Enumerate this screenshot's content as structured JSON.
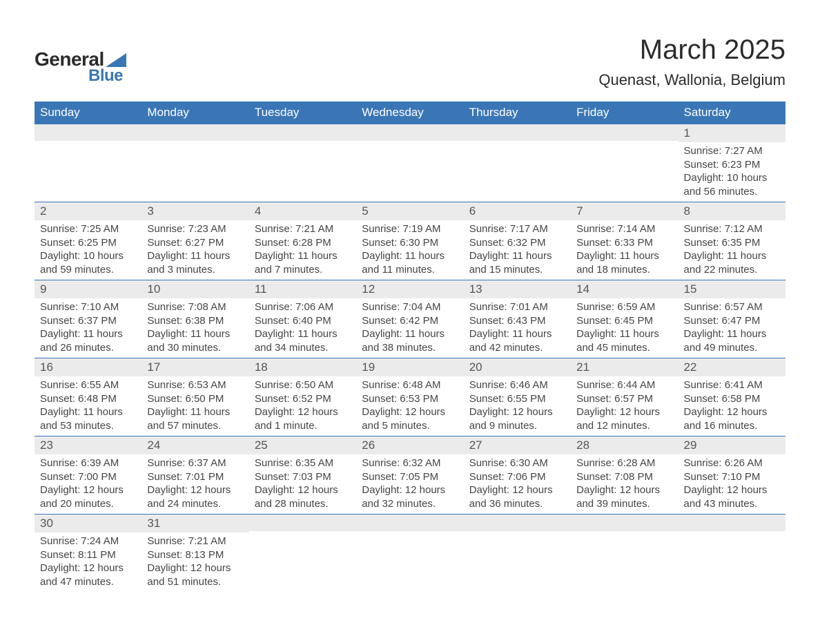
{
  "logo": {
    "text_general": "General",
    "text_blue": "Blue",
    "accent_color": "#3a76b5"
  },
  "title": {
    "month": "March 2025",
    "location": "Quenast, Wallonia, Belgium",
    "title_fontsize": 40,
    "location_fontsize": 22
  },
  "colors": {
    "header_bg": "#3a76b5",
    "header_text": "#ffffff",
    "daynum_bg": "#ebebeb",
    "daynum_text": "#555555",
    "body_text": "#454545",
    "row_border": "#3a76b5",
    "page_bg": "#ffffff"
  },
  "days_of_week": [
    "Sunday",
    "Monday",
    "Tuesday",
    "Wednesday",
    "Thursday",
    "Friday",
    "Saturday"
  ],
  "weeks": [
    [
      {
        "empty": true
      },
      {
        "empty": true
      },
      {
        "empty": true
      },
      {
        "empty": true
      },
      {
        "empty": true
      },
      {
        "empty": true
      },
      {
        "daynum": "1",
        "sunrise": "Sunrise: 7:27 AM",
        "sunset": "Sunset: 6:23 PM",
        "daylight": "Daylight: 10 hours and 56 minutes."
      }
    ],
    [
      {
        "daynum": "2",
        "sunrise": "Sunrise: 7:25 AM",
        "sunset": "Sunset: 6:25 PM",
        "daylight": "Daylight: 10 hours and 59 minutes."
      },
      {
        "daynum": "3",
        "sunrise": "Sunrise: 7:23 AM",
        "sunset": "Sunset: 6:27 PM",
        "daylight": "Daylight: 11 hours and 3 minutes."
      },
      {
        "daynum": "4",
        "sunrise": "Sunrise: 7:21 AM",
        "sunset": "Sunset: 6:28 PM",
        "daylight": "Daylight: 11 hours and 7 minutes."
      },
      {
        "daynum": "5",
        "sunrise": "Sunrise: 7:19 AM",
        "sunset": "Sunset: 6:30 PM",
        "daylight": "Daylight: 11 hours and 11 minutes."
      },
      {
        "daynum": "6",
        "sunrise": "Sunrise: 7:17 AM",
        "sunset": "Sunset: 6:32 PM",
        "daylight": "Daylight: 11 hours and 15 minutes."
      },
      {
        "daynum": "7",
        "sunrise": "Sunrise: 7:14 AM",
        "sunset": "Sunset: 6:33 PM",
        "daylight": "Daylight: 11 hours and 18 minutes."
      },
      {
        "daynum": "8",
        "sunrise": "Sunrise: 7:12 AM",
        "sunset": "Sunset: 6:35 PM",
        "daylight": "Daylight: 11 hours and 22 minutes."
      }
    ],
    [
      {
        "daynum": "9",
        "sunrise": "Sunrise: 7:10 AM",
        "sunset": "Sunset: 6:37 PM",
        "daylight": "Daylight: 11 hours and 26 minutes."
      },
      {
        "daynum": "10",
        "sunrise": "Sunrise: 7:08 AM",
        "sunset": "Sunset: 6:38 PM",
        "daylight": "Daylight: 11 hours and 30 minutes."
      },
      {
        "daynum": "11",
        "sunrise": "Sunrise: 7:06 AM",
        "sunset": "Sunset: 6:40 PM",
        "daylight": "Daylight: 11 hours and 34 minutes."
      },
      {
        "daynum": "12",
        "sunrise": "Sunrise: 7:04 AM",
        "sunset": "Sunset: 6:42 PM",
        "daylight": "Daylight: 11 hours and 38 minutes."
      },
      {
        "daynum": "13",
        "sunrise": "Sunrise: 7:01 AM",
        "sunset": "Sunset: 6:43 PM",
        "daylight": "Daylight: 11 hours and 42 minutes."
      },
      {
        "daynum": "14",
        "sunrise": "Sunrise: 6:59 AM",
        "sunset": "Sunset: 6:45 PM",
        "daylight": "Daylight: 11 hours and 45 minutes."
      },
      {
        "daynum": "15",
        "sunrise": "Sunrise: 6:57 AM",
        "sunset": "Sunset: 6:47 PM",
        "daylight": "Daylight: 11 hours and 49 minutes."
      }
    ],
    [
      {
        "daynum": "16",
        "sunrise": "Sunrise: 6:55 AM",
        "sunset": "Sunset: 6:48 PM",
        "daylight": "Daylight: 11 hours and 53 minutes."
      },
      {
        "daynum": "17",
        "sunrise": "Sunrise: 6:53 AM",
        "sunset": "Sunset: 6:50 PM",
        "daylight": "Daylight: 11 hours and 57 minutes."
      },
      {
        "daynum": "18",
        "sunrise": "Sunrise: 6:50 AM",
        "sunset": "Sunset: 6:52 PM",
        "daylight": "Daylight: 12 hours and 1 minute."
      },
      {
        "daynum": "19",
        "sunrise": "Sunrise: 6:48 AM",
        "sunset": "Sunset: 6:53 PM",
        "daylight": "Daylight: 12 hours and 5 minutes."
      },
      {
        "daynum": "20",
        "sunrise": "Sunrise: 6:46 AM",
        "sunset": "Sunset: 6:55 PM",
        "daylight": "Daylight: 12 hours and 9 minutes."
      },
      {
        "daynum": "21",
        "sunrise": "Sunrise: 6:44 AM",
        "sunset": "Sunset: 6:57 PM",
        "daylight": "Daylight: 12 hours and 12 minutes."
      },
      {
        "daynum": "22",
        "sunrise": "Sunrise: 6:41 AM",
        "sunset": "Sunset: 6:58 PM",
        "daylight": "Daylight: 12 hours and 16 minutes."
      }
    ],
    [
      {
        "daynum": "23",
        "sunrise": "Sunrise: 6:39 AM",
        "sunset": "Sunset: 7:00 PM",
        "daylight": "Daylight: 12 hours and 20 minutes."
      },
      {
        "daynum": "24",
        "sunrise": "Sunrise: 6:37 AM",
        "sunset": "Sunset: 7:01 PM",
        "daylight": "Daylight: 12 hours and 24 minutes."
      },
      {
        "daynum": "25",
        "sunrise": "Sunrise: 6:35 AM",
        "sunset": "Sunset: 7:03 PM",
        "daylight": "Daylight: 12 hours and 28 minutes."
      },
      {
        "daynum": "26",
        "sunrise": "Sunrise: 6:32 AM",
        "sunset": "Sunset: 7:05 PM",
        "daylight": "Daylight: 12 hours and 32 minutes."
      },
      {
        "daynum": "27",
        "sunrise": "Sunrise: 6:30 AM",
        "sunset": "Sunset: 7:06 PM",
        "daylight": "Daylight: 12 hours and 36 minutes."
      },
      {
        "daynum": "28",
        "sunrise": "Sunrise: 6:28 AM",
        "sunset": "Sunset: 7:08 PM",
        "daylight": "Daylight: 12 hours and 39 minutes."
      },
      {
        "daynum": "29",
        "sunrise": "Sunrise: 6:26 AM",
        "sunset": "Sunset: 7:10 PM",
        "daylight": "Daylight: 12 hours and 43 minutes."
      }
    ],
    [
      {
        "daynum": "30",
        "sunrise": "Sunrise: 7:24 AM",
        "sunset": "Sunset: 8:11 PM",
        "daylight": "Daylight: 12 hours and 47 minutes."
      },
      {
        "daynum": "31",
        "sunrise": "Sunrise: 7:21 AM",
        "sunset": "Sunset: 8:13 PM",
        "daylight": "Daylight: 12 hours and 51 minutes."
      },
      {
        "empty": true
      },
      {
        "empty": true
      },
      {
        "empty": true
      },
      {
        "empty": true
      },
      {
        "empty": true
      }
    ]
  ]
}
